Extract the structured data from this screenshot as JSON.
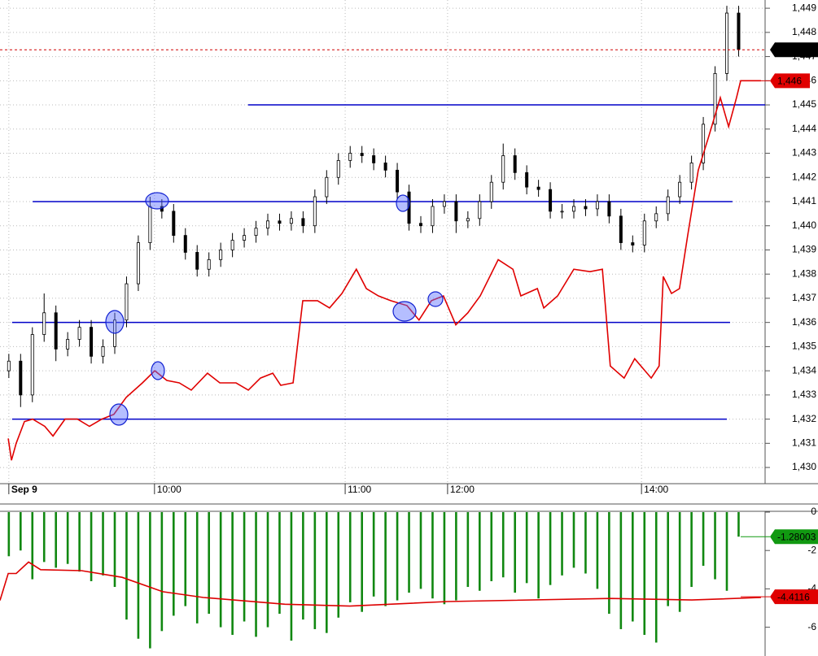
{
  "chart_data": [
    {
      "type": "candlestick",
      "xlim": [
        0,
        260
      ],
      "ylim": [
        1429.33,
        1449.34
      ],
      "grid": true,
      "yticks": [
        {
          "value": 1430,
          "label": "1,430"
        },
        {
          "value": 1431,
          "label": "1,431"
        },
        {
          "value": 1432,
          "label": "1,432"
        },
        {
          "value": 1433,
          "label": "1,433"
        },
        {
          "value": 1434,
          "label": "1,434"
        },
        {
          "value": 1435,
          "label": "1,435"
        },
        {
          "value": 1436,
          "label": "1,436"
        },
        {
          "value": 1437,
          "label": "1,437"
        },
        {
          "value": 1438,
          "label": "1,438"
        },
        {
          "value": 1439,
          "label": "1,439"
        },
        {
          "value": 1440,
          "label": "1,440"
        },
        {
          "value": 1441,
          "label": "1,441"
        },
        {
          "value": 1442,
          "label": "1,442"
        },
        {
          "value": 1443,
          "label": "1,443"
        },
        {
          "value": 1444,
          "label": "1,444"
        },
        {
          "value": 1445,
          "label": "1,445"
        },
        {
          "value": 1446,
          "label": "1,446"
        },
        {
          "value": 1447,
          "label": "1,447"
        },
        {
          "value": 1448,
          "label": "1,448"
        },
        {
          "value": 1449,
          "label": "1,449"
        }
      ],
      "xticks": [
        {
          "value": 3,
          "label": "Sep 9"
        },
        {
          "value": 52.5,
          "label": "10:00"
        },
        {
          "value": 117.3,
          "label": "11:00"
        },
        {
          "value": 152.1,
          "label": "12:00"
        },
        {
          "value": 218,
          "label": "14:00"
        }
      ],
      "candles": {
        "up_color": "#ffffff",
        "down_color": "#000000",
        "x": [
          3,
          7,
          11,
          15,
          19,
          23,
          27,
          31,
          35,
          39,
          43,
          47,
          51,
          55,
          59,
          63,
          67,
          71,
          75,
          79,
          83,
          87,
          91,
          95,
          99,
          103,
          107,
          111,
          115,
          119,
          123,
          127,
          131,
          135,
          139,
          143,
          147,
          151,
          155,
          159,
          163,
          167,
          171,
          175,
          179,
          183,
          187,
          191,
          195,
          199,
          203,
          207,
          211,
          215,
          219,
          223,
          227,
          231,
          235,
          239,
          243,
          247,
          251
        ],
        "open": [
          1434.0,
          1434.4,
          1433.0,
          1435.5,
          1436.4,
          1434.9,
          1435.3,
          1435.8,
          1434.6,
          1435.0,
          1436.1,
          1437.6,
          1439.3,
          1440.8,
          1440.6,
          1439.6,
          1438.9,
          1438.2,
          1438.6,
          1439.0,
          1439.4,
          1439.6,
          1439.9,
          1440.2,
          1440.1,
          1440.3,
          1440.0,
          1441.2,
          1442.0,
          1442.7,
          1443.0,
          1442.9,
          1442.6,
          1442.3,
          1441.4,
          1440.1,
          1440.0,
          1440.8,
          1441.0,
          1440.2,
          1440.3,
          1441.0,
          1441.8,
          1442.9,
          1442.2,
          1441.6,
          1441.5,
          1440.6,
          1440.6,
          1440.8,
          1440.7,
          1441.0,
          1440.4,
          1439.3,
          1439.2,
          1440.2,
          1440.5,
          1441.2,
          1441.8,
          1442.6,
          1444.2,
          1446.3,
          1448.8
        ],
        "high": [
          1434.7,
          1434.7,
          1435.8,
          1437.2,
          1436.7,
          1435.6,
          1436.1,
          1436.1,
          1435.3,
          1436.4,
          1437.9,
          1439.6,
          1441.2,
          1441.1,
          1440.9,
          1439.9,
          1439.2,
          1438.9,
          1439.3,
          1439.7,
          1439.9,
          1440.2,
          1440.5,
          1440.5,
          1440.6,
          1440.6,
          1441.5,
          1442.3,
          1443.0,
          1443.3,
          1443.3,
          1443.2,
          1442.9,
          1442.6,
          1441.7,
          1440.4,
          1441.1,
          1441.3,
          1441.3,
          1440.6,
          1441.3,
          1442.1,
          1443.4,
          1443.2,
          1442.5,
          1441.9,
          1441.8,
          1440.9,
          1441.1,
          1441.1,
          1441.3,
          1441.3,
          1440.7,
          1439.6,
          1440.5,
          1440.8,
          1441.5,
          1442.1,
          1442.9,
          1444.5,
          1446.6,
          1449.1,
          1449.1
        ],
        "low": [
          1433.7,
          1432.5,
          1432.7,
          1435.2,
          1434.4,
          1434.6,
          1435.0,
          1434.3,
          1434.3,
          1434.7,
          1435.8,
          1437.3,
          1439.0,
          1440.3,
          1439.3,
          1438.6,
          1437.9,
          1437.9,
          1438.3,
          1438.7,
          1439.1,
          1439.3,
          1439.6,
          1439.8,
          1439.8,
          1439.7,
          1439.7,
          1440.9,
          1441.7,
          1442.4,
          1442.6,
          1442.3,
          1442.0,
          1441.1,
          1439.8,
          1439.7,
          1439.7,
          1440.5,
          1439.7,
          1439.9,
          1440.0,
          1440.7,
          1441.5,
          1441.9,
          1441.3,
          1441.2,
          1440.3,
          1440.3,
          1440.3,
          1440.4,
          1440.4,
          1440.1,
          1439.0,
          1438.9,
          1438.9,
          1439.9,
          1440.2,
          1440.9,
          1441.5,
          1442.3,
          1443.9,
          1446.0,
          1447.0
        ],
        "close": [
          1434.4,
          1433.0,
          1435.5,
          1436.4,
          1434.9,
          1435.3,
          1435.8,
          1434.6,
          1435.0,
          1436.1,
          1437.6,
          1439.3,
          1440.8,
          1440.6,
          1439.6,
          1438.9,
          1438.2,
          1438.6,
          1439.0,
          1439.4,
          1439.6,
          1439.9,
          1440.2,
          1440.1,
          1440.3,
          1440.0,
          1441.2,
          1442.0,
          1442.7,
          1443.0,
          1442.9,
          1442.6,
          1442.3,
          1441.4,
          1440.1,
          1440.0,
          1440.8,
          1441.0,
          1440.2,
          1440.3,
          1441.0,
          1441.8,
          1442.9,
          1442.2,
          1441.6,
          1441.5,
          1440.6,
          1440.6,
          1440.8,
          1440.7,
          1441.0,
          1440.4,
          1439.3,
          1439.2,
          1440.2,
          1440.5,
          1441.2,
          1441.8,
          1442.6,
          1444.2,
          1446.3,
          1448.8,
          1447.3
        ]
      },
      "series": [
        {
          "type": "line",
          "color": "#e00000",
          "x": [
            2.8,
            3.9,
            5.5,
            8.3,
            11.1,
            15.2,
            18.0,
            22.1,
            26.3,
            30.4,
            34.6,
            38.7,
            42.9,
            48.4,
            52.6,
            56.7,
            60.9,
            65.0,
            70.5,
            74.7,
            80.2,
            84.4,
            88.5,
            92.7,
            95.4,
            99.6,
            102.9,
            107.9,
            112.0,
            116.2,
            121.1,
            124.5,
            128.6,
            132.8,
            138.3,
            142.4,
            146.6,
            150.7,
            154.9,
            159.0,
            163.2,
            169.3,
            174.3,
            177.0,
            182.6,
            184.8,
            189.5,
            195.0,
            200.5,
            204.7,
            207.4,
            212.1,
            215.7,
            221.3,
            224.0,
            225.4,
            228.2,
            230.9,
            233.7,
            237.3,
            240.6,
            244.8,
            247.6,
            250.3,
            251.7,
            258.6
          ],
          "values": [
            1431.2,
            1430.3,
            1431.0,
            1431.9,
            1432.0,
            1431.7,
            1431.3,
            1432.0,
            1432.0,
            1431.7,
            1432.0,
            1432.2,
            1432.9,
            1433.5,
            1434.0,
            1433.6,
            1433.5,
            1433.2,
            1433.9,
            1433.5,
            1433.5,
            1433.2,
            1433.7,
            1433.9,
            1433.4,
            1433.5,
            1436.9,
            1436.9,
            1436.6,
            1437.2,
            1438.2,
            1437.4,
            1437.1,
            1436.9,
            1436.7,
            1436.1,
            1436.9,
            1437.1,
            1435.9,
            1436.4,
            1437.1,
            1438.6,
            1438.2,
            1437.1,
            1437.4,
            1436.6,
            1437.1,
            1438.2,
            1438.1,
            1438.2,
            1434.2,
            1433.7,
            1434.5,
            1433.7,
            1434.2,
            1437.9,
            1437.2,
            1437.4,
            1439.6,
            1442.3,
            1443.6,
            1445.3,
            1444.1,
            1445.3,
            1446.0,
            1446.0
          ]
        }
      ],
      "levels": [
        {
          "value": 1445,
          "x": [
            84.3,
            260
          ],
          "color": "#0000c8"
        },
        {
          "value": 1441,
          "x": [
            11.1,
            248.9
          ],
          "color": "#0000c8"
        },
        {
          "value": 1436,
          "x": [
            4.1,
            248.1
          ],
          "color": "#0000c8"
        },
        {
          "value": 1432,
          "x": [
            4.1,
            247.0
          ],
          "color": "#0000c8"
        }
      ],
      "markers": [
        {
          "value": 1447.28,
          "label": "1,447.28",
          "color": "#000000",
          "guide": true
        },
        {
          "value": 1446,
          "label": "1,446",
          "color": "#e00000",
          "guide": false
        }
      ]
    },
    {
      "type": "bar",
      "xlim": [
        0,
        260
      ],
      "ylim": [
        -7.5,
        0
      ],
      "yticks": [
        0,
        -2,
        -4,
        -6
      ],
      "series": [
        {
          "type": "bar",
          "color": "#118811",
          "x": [
            3,
            7,
            11,
            15,
            19,
            23,
            27,
            31,
            35,
            39,
            43,
            47,
            51,
            55,
            59,
            63,
            67,
            71,
            75,
            79,
            83,
            87,
            91,
            95,
            99,
            103,
            107,
            111,
            115,
            119,
            123,
            127,
            131,
            135,
            139,
            143,
            147,
            151,
            155,
            159,
            163,
            167,
            171,
            175,
            179,
            183,
            187,
            191,
            195,
            199,
            203,
            207,
            211,
            215,
            219,
            223,
            227,
            231,
            235,
            239,
            243,
            247,
            251
          ],
          "values": [
            -2.3,
            -2.0,
            -3.5,
            -2.6,
            -2.9,
            -2.7,
            -3.1,
            -3.6,
            -3.3,
            -3.9,
            -5.6,
            -6.6,
            -7.1,
            -6.2,
            -5.4,
            -4.9,
            -5.8,
            -5.3,
            -6.0,
            -6.4,
            -5.7,
            -6.5,
            -6.0,
            -5.3,
            -6.7,
            -5.6,
            -6.1,
            -6.3,
            -5.5,
            -4.7,
            -5.2,
            -4.4,
            -4.9,
            -4.6,
            -4.2,
            -4.0,
            -4.5,
            -4.8,
            -4.6,
            -3.9,
            -4.1,
            -3.6,
            -3.4,
            -4.2,
            -3.7,
            -4.5,
            -3.8,
            -3.3,
            -2.9,
            -3.2,
            -4.0,
            -5.3,
            -6.1,
            -5.7,
            -6.4,
            -6.8,
            -4.9,
            -5.2,
            -3.9,
            -2.8,
            -3.5,
            -4.1,
            -1.28003
          ]
        },
        {
          "type": "line",
          "color": "#dd0000",
          "x": [
            0,
            2.8,
            5.5,
            9.7,
            13.8,
            27.7,
            41.5,
            55.3,
            69.1,
            96.8,
            118.9,
            152.1,
            207.4,
            235.1,
            258.6
          ],
          "values": [
            -4.6,
            -3.2,
            -3.2,
            -2.6,
            -3.0,
            -3.05,
            -3.4,
            -4.15,
            -4.45,
            -4.8,
            -4.9,
            -4.66,
            -4.5,
            -4.58,
            -4.45
          ]
        }
      ],
      "markers": [
        {
          "value": -1.28003,
          "label": "-1.28003",
          "color": "#119911"
        },
        {
          "value": -4.4116,
          "label": "-4.4116",
          "color": "#e00000"
        }
      ]
    }
  ]
}
